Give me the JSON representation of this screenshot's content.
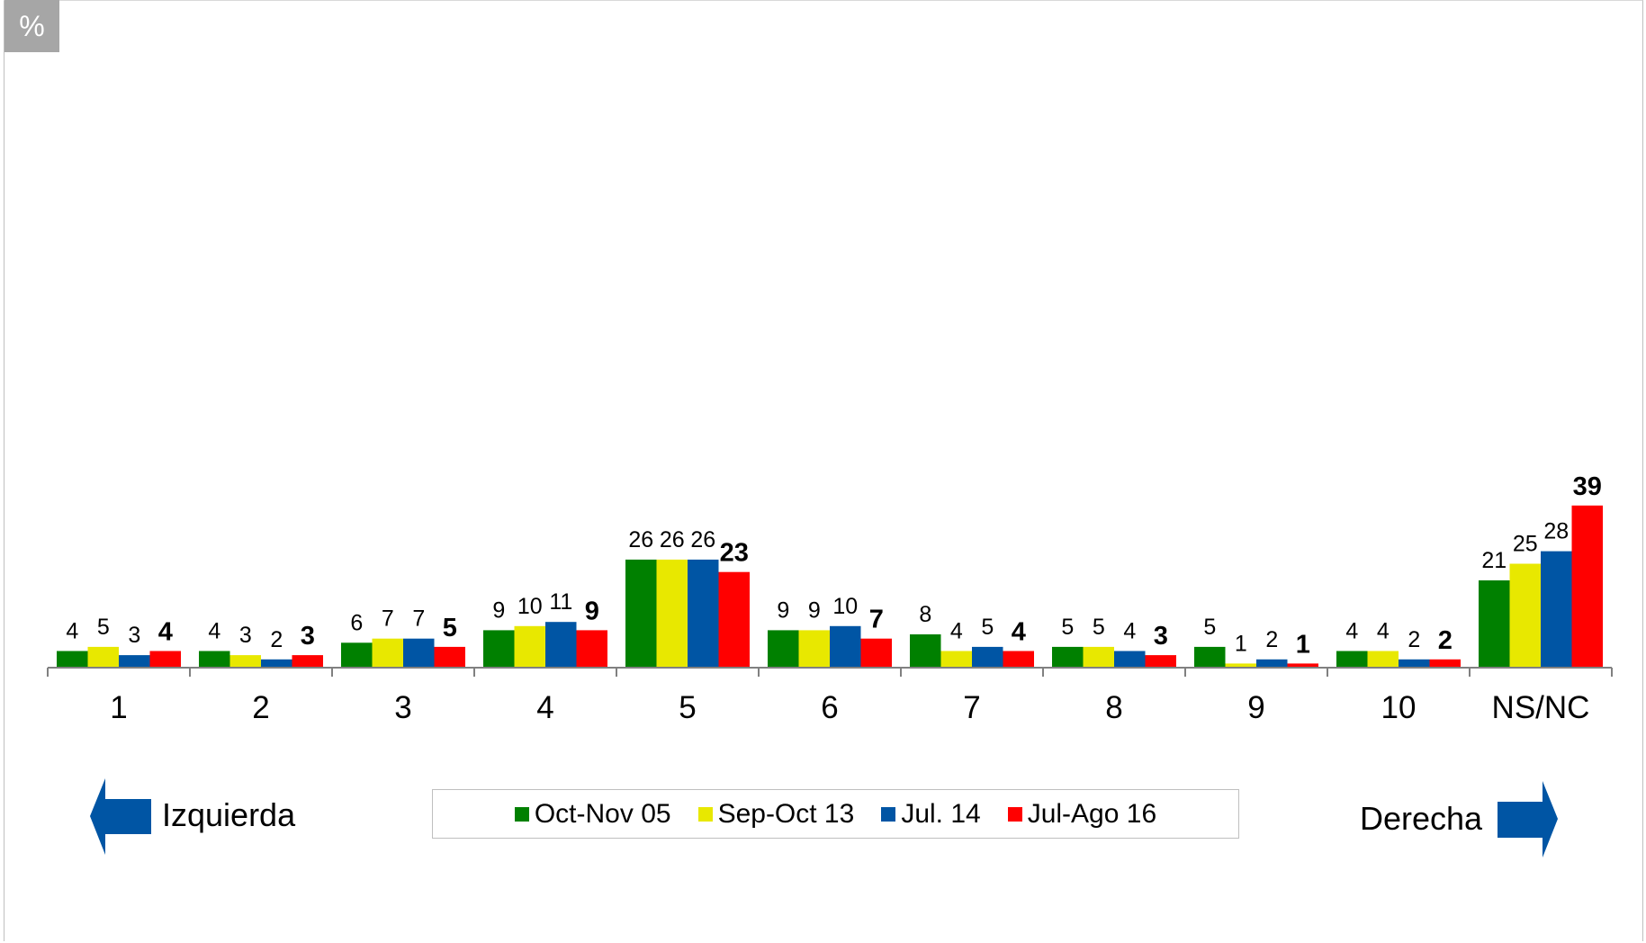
{
  "badge": "%",
  "direction": {
    "left_label": "Izquierda",
    "right_label": "Derecha",
    "arrow_color": "#0055a4"
  },
  "chart_data": {
    "type": "bar",
    "title": "",
    "xlabel": "",
    "ylabel": "",
    "ylim": [
      0,
      100
    ],
    "grid": false,
    "legend_position": "bottom",
    "categories": [
      "1",
      "2",
      "3",
      "4",
      "5",
      "6",
      "7",
      "8",
      "9",
      "10",
      "NS/NC"
    ],
    "series": [
      {
        "name": "Oct-Nov 05",
        "color": "#008000",
        "values": [
          4,
          4,
          6,
          9,
          26,
          9,
          8,
          5,
          5,
          4,
          21
        ]
      },
      {
        "name": "Sep-Oct 13",
        "color": "#e8e800",
        "values": [
          5,
          3,
          7,
          10,
          26,
          9,
          4,
          5,
          1,
          4,
          25
        ]
      },
      {
        "name": "Jul. 14",
        "color": "#0055a4",
        "values": [
          3,
          2,
          7,
          11,
          26,
          10,
          5,
          4,
          2,
          2,
          28
        ]
      },
      {
        "name": "Jul-Ago 16",
        "color": "#ff0000",
        "values": [
          4,
          3,
          5,
          9,
          23,
          7,
          4,
          3,
          1,
          2,
          39
        ]
      }
    ],
    "bold_series": "Jul-Ago 16"
  }
}
